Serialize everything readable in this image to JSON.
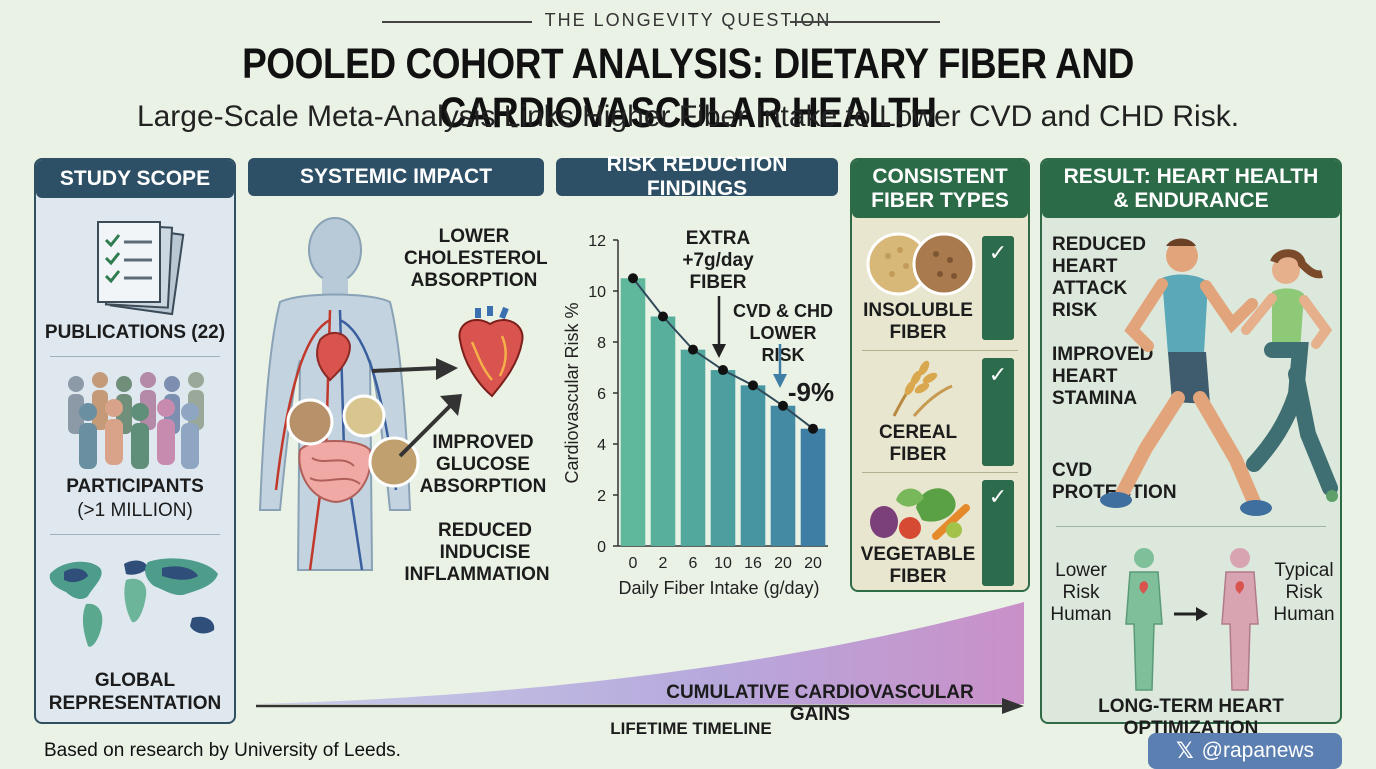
{
  "header": {
    "kicker": "THE LONGEVITY QUESTION",
    "title": "POOLED COHORT ANALYSIS: DIETARY FIBER AND CARDIOVASCULAR HEALTH",
    "subtitle": "Large-Scale Meta-Analysis Links Higher Fiber Intake to Lower CVD and CHD Risk."
  },
  "study_scope": {
    "heading": "STUDY SCOPE",
    "publications": "PUBLICATIONS (22)",
    "participants": "PARTICIPANTS",
    "participants_count": "(>1 MILLION)",
    "global_line1": "GLOBAL",
    "global_line2": "REPRESENTATION",
    "icons": [
      "documents-icon",
      "crowd-icon",
      "world-map-icon"
    ]
  },
  "systemic_impact": {
    "heading": "SYSTEMIC IMPACT",
    "label1": [
      "LOWER",
      "CHOLESTEROL",
      "ABSORPTION"
    ],
    "label2": [
      "IMPROVED",
      "GLUCOSE",
      "ABSORPTION"
    ],
    "label3": [
      "REDUCED",
      "INDUCISE",
      "INFLAMMATION"
    ]
  },
  "risk_findings": {
    "heading": "RISK REDUCTION FINDINGS",
    "annotation_extra": [
      "EXTRA",
      "+7g/day",
      "FIBER"
    ],
    "annotation_lower": [
      "CVD & CHD",
      "LOWER RISK"
    ],
    "annotation_pct": "-9%"
  },
  "chart_data": {
    "type": "bar",
    "categories": [
      "0",
      "2",
      "6",
      "10",
      "16",
      "20",
      "20"
    ],
    "values": [
      10.5,
      9.0,
      7.7,
      6.9,
      6.3,
      5.5,
      4.6
    ],
    "trend_line": true,
    "xlabel": "Daily Fiber Intake (g/day)",
    "ylabel": "Cardiovascular Risk %",
    "ylim": [
      0,
      12
    ],
    "yticks": [
      "0",
      "2",
      "4",
      "6",
      "8",
      "10",
      "12"
    ],
    "colors": [
      "#5fb89c",
      "#58b09c",
      "#52a89d",
      "#4c9f9e",
      "#4795a0",
      "#438aa2",
      "#3f7ea4"
    ]
  },
  "fiber_types": {
    "heading_line1": "CONSISTENT",
    "heading_line2": "FIBER TYPES",
    "items": [
      {
        "line1": "INSOLUBLE",
        "line2": "FIBER",
        "check": "✓"
      },
      {
        "line1": "CEREAL",
        "line2": "FIBER",
        "check": "✓"
      },
      {
        "line1": "VEGETABLE",
        "line2": "FIBER",
        "check": "✓"
      }
    ]
  },
  "result": {
    "heading_line1": "RESULT: HEART HEALTH",
    "heading_line2": "& ENDURANCE",
    "benefit1": [
      "REDUCED",
      "HEART",
      "ATTACK",
      "RISK"
    ],
    "benefit2": [
      "IMPROVED",
      "HEART",
      "STAMINA"
    ],
    "benefit3": [
      "CVD",
      "PROTECTION"
    ],
    "lower_risk": [
      "Lower",
      "Risk",
      "Human"
    ],
    "typical_risk": [
      "Typical",
      "Risk",
      "Human"
    ],
    "bottom": "LONG-TERM HEART OPTIMIZATION"
  },
  "timeline": {
    "gains": "CUMULATIVE CARDIOVASCULAR GAINS",
    "label": "LIFETIME TIMELINE"
  },
  "footer": {
    "source": "Based on research by University of Leeds.",
    "handle": "@rapanews",
    "handle_icon": "x-logo-icon"
  }
}
